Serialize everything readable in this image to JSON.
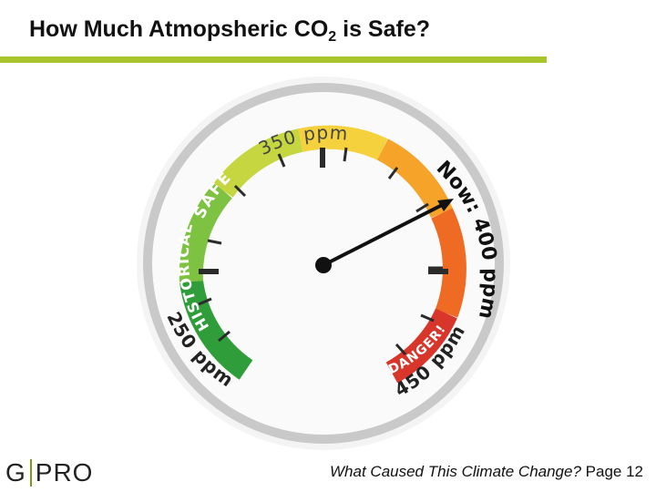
{
  "slide": {
    "title_main": "How Much Atmopsheric CO",
    "title_subscript": "2",
    "title_end": " is Safe?",
    "accent_color": "#a9c52c"
  },
  "gauge": {
    "label_350": "350 ppm",
    "label_safe": "SAFE",
    "label_historical": "HISTORICAL",
    "label_250": "250 ppm",
    "label_now": "Now: 400 ppm",
    "label_danger": "DANGER!",
    "label_450": "450 ppm",
    "needle_value_ppm": 400
  },
  "footer": {
    "logo_left": "G",
    "logo_right": "PRO",
    "caption_italic": "What Caused This Climate Change?",
    "page_label": " Page 12"
  }
}
